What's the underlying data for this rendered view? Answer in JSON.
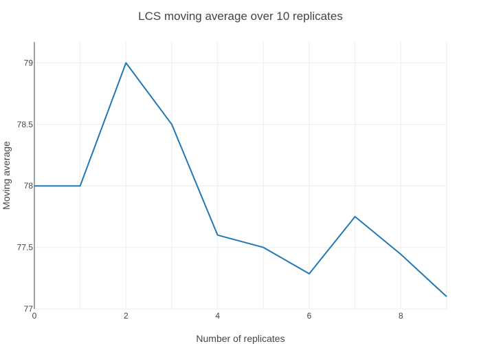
{
  "chart_data": {
    "type": "line",
    "title": "LCS moving average over 10 replicates",
    "xlabel": "Number of replicates",
    "ylabel": "Moving average",
    "xlim": [
      0,
      9
    ],
    "ylim": [
      77,
      79.17
    ],
    "x_ticks": [
      0,
      2,
      4,
      6,
      8
    ],
    "x_tick_labels": [
      "0",
      "2",
      "4",
      "6",
      "8"
    ],
    "y_ticks": [
      77,
      77.5,
      78,
      78.5,
      79
    ],
    "y_tick_labels": [
      "77",
      "77.5",
      "78",
      "78.5",
      "79"
    ],
    "grid": true,
    "series": [
      {
        "color": "#1f77b4",
        "x": [
          0,
          1,
          2,
          3,
          4,
          5,
          6,
          7,
          8,
          9
        ],
        "y": [
          78.0,
          78.0,
          79.0,
          78.5,
          77.6,
          77.5,
          77.286,
          77.75,
          77.444,
          77.1
        ]
      }
    ]
  }
}
